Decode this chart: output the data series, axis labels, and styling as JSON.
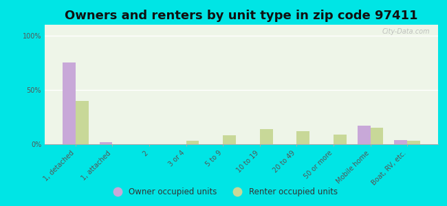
{
  "title": "Owners and renters by unit type in zip code 97411",
  "categories": [
    "1, detached",
    "1, attached",
    "2",
    "3 or 4",
    "5 to 9",
    "10 to 19",
    "20 to 49",
    "50 or more",
    "Mobile home",
    "Boat, RV, etc."
  ],
  "owner_values": [
    75,
    2,
    0,
    0,
    0,
    0,
    0,
    0,
    17,
    4
  ],
  "renter_values": [
    40,
    0,
    0,
    3,
    8,
    14,
    12,
    9,
    15,
    3
  ],
  "owner_color": "#c8a8d8",
  "renter_color": "#c8d898",
  "background_color": "#00e5e5",
  "plot_bg_color": "#eef5e8",
  "ylabel_ticks": [
    "0%",
    "50%",
    "100%"
  ],
  "yticks": [
    0,
    50,
    100
  ],
  "ylim": [
    0,
    110
  ],
  "bar_width": 0.35,
  "legend_owner": "Owner occupied units",
  "legend_renter": "Renter occupied units",
  "title_fontsize": 13,
  "tick_fontsize": 7,
  "watermark": "City-Data.com"
}
